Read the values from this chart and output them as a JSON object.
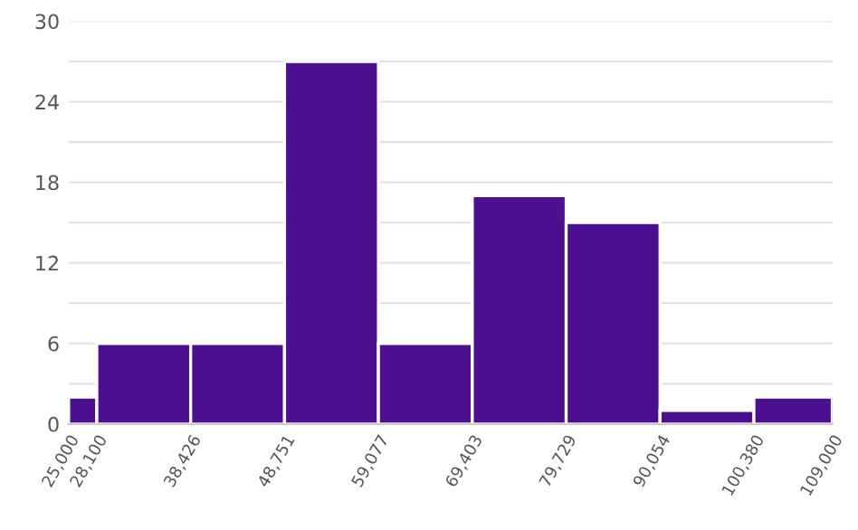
{
  "chart_data": {
    "type": "histogram",
    "bins": [
      25000,
      28100,
      38426,
      48751,
      59077,
      69403,
      79729,
      90054,
      100380,
      109000
    ],
    "values": [
      2,
      6,
      6,
      27,
      6,
      17,
      15,
      1,
      2
    ],
    "color": "#4b0f8f",
    "xlim": [
      25000,
      109000
    ],
    "xticks": [
      {
        "value": 25000,
        "label": "25,000"
      },
      {
        "value": 28100,
        "label": "28,100"
      },
      {
        "value": 38426,
        "label": "38,426"
      },
      {
        "value": 48751,
        "label": "48,751"
      },
      {
        "value": 59077,
        "label": "59,077"
      },
      {
        "value": 69403,
        "label": "69,403"
      },
      {
        "value": 79729,
        "label": "79,729"
      },
      {
        "value": 90054,
        "label": "90,054"
      },
      {
        "value": 100380,
        "label": "100,380"
      },
      {
        "value": 109000,
        "label": "109,000"
      }
    ],
    "ylim": [
      0,
      30
    ],
    "yticks": [
      0,
      {
        "value": 3,
        "label": null
      },
      6,
      {
        "value": 9,
        "label": null
      },
      12,
      {
        "value": 15,
        "label": null
      },
      18,
      {
        "value": 21,
        "label": null
      },
      24,
      {
        "value": 27,
        "label": null
      },
      30
    ],
    "grid": "y"
  }
}
